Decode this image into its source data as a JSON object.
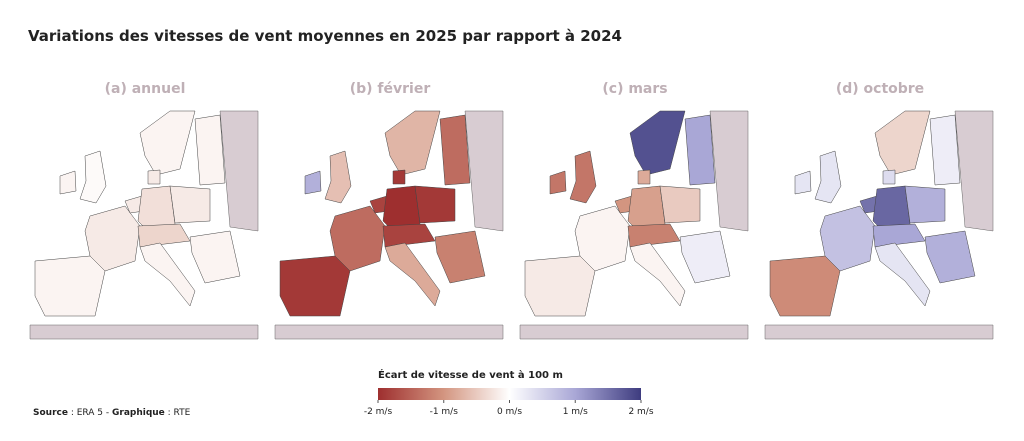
{
  "title": "Variations des vitesses de vent moyennes en 2025 par rapport à 2024",
  "panels": [
    {
      "label": "(a) annuel",
      "values": [
        -0.1,
        -0.2,
        -0.05,
        -0.1,
        -0.2,
        -0.3,
        -0.2,
        -0.4,
        -0.1,
        -0.1,
        -0.1,
        -0.1,
        -0.2
      ]
    },
    {
      "label": "(b) février",
      "values": [
        -1.9,
        -1.4,
        -0.6,
        0.9,
        -1.8,
        -2,
        -1.9,
        -1.8,
        -0.8,
        -1.2,
        -0.7,
        -1.4,
        -1.9
      ]
    },
    {
      "label": "(c) mars",
      "values": [
        -0.2,
        -0.1,
        -1.3,
        -1.3,
        -1,
        -0.9,
        -0.5,
        -1.2,
        -0.1,
        0.2,
        1.8,
        1,
        -0.8
      ]
    },
    {
      "label": "(d) octobre",
      "values": [
        -1.1,
        0.7,
        0.3,
        0.3,
        1.5,
        1.6,
        0.9,
        1,
        0.3,
        0.9,
        -0.4,
        0.2,
        0.4
      ]
    }
  ],
  "legend": {
    "title": "Écart de vitesse de vent à 100 m",
    "range": [
      -2,
      2
    ],
    "ticks": [
      {
        "value": -2,
        "label": "-2 m/s"
      },
      {
        "value": -1,
        "label": "-1 m/s"
      },
      {
        "value": 0,
        "label": "0 m/s"
      },
      {
        "value": 1,
        "label": "1 m/s"
      },
      {
        "value": 2,
        "label": "2 m/s"
      }
    ]
  },
  "source": {
    "label1": "Source",
    "text1": " : ERA 5 - ",
    "label2": "Graphique",
    "text2": " : RTE"
  }
}
